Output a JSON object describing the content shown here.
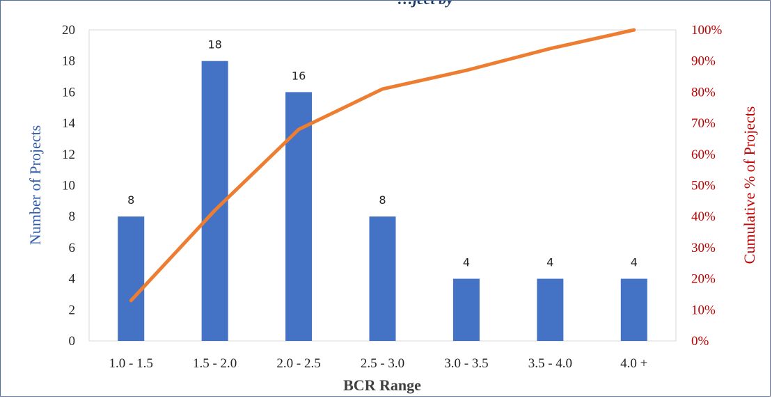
{
  "chart_data": {
    "type": "bar",
    "title": "…ject by",
    "xlabel": "BCR Range",
    "ylabel": "Number of Projects",
    "y2label": "Cumulative % of Projects",
    "categories": [
      "1.0 - 1.5",
      "1.5 - 2.0",
      "2.0 - 2.5",
      "2.5 - 3.0",
      "3.0 - 3.5",
      "3.5 - 4.0",
      "4.0 +"
    ],
    "ylim": [
      0,
      20
    ],
    "y_ticks": [
      "0",
      "2",
      "4",
      "6",
      "8",
      "10",
      "12",
      "14",
      "16",
      "18",
      "20"
    ],
    "y2lim": [
      0,
      100
    ],
    "y2_ticks": [
      "0%",
      "10%",
      "20%",
      "30%",
      "40%",
      "50%",
      "60%",
      "70%",
      "80%",
      "90%",
      "100%"
    ],
    "grid": false,
    "series": [
      {
        "type": "bar",
        "axis": "left",
        "values": [
          8,
          18,
          16,
          8,
          4,
          4,
          4
        ],
        "data_labels": [
          "8",
          "18",
          "16",
          "8",
          "4",
          "4",
          "4"
        ]
      },
      {
        "type": "line",
        "axis": "right",
        "values": [
          13,
          42,
          68,
          81,
          87,
          94,
          100
        ]
      }
    ],
    "colors": {
      "bars": "#4472c4",
      "line": "#ed7d31",
      "left_axis_label": "#2e5aa8",
      "right_axis": "#c00000",
      "ticks": "#222222"
    }
  }
}
